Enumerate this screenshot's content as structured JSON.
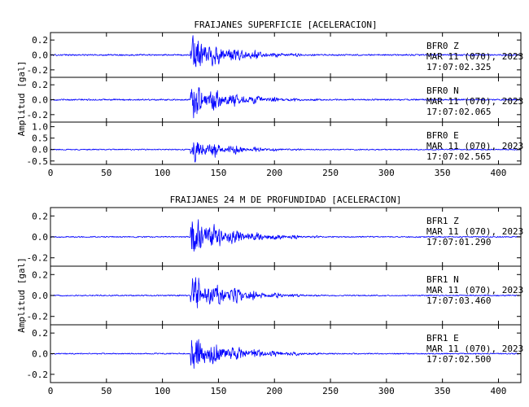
{
  "chart_data": [
    {
      "type": "line",
      "title": "FRAIJANES SUPERFICIE [ACELERACION]",
      "ylabel": "Amplitud [gal]",
      "xlim": [
        0,
        420
      ],
      "x_ticks": [
        "0",
        "50",
        "100",
        "150",
        "200",
        "250",
        "300",
        "350",
        "400"
      ],
      "series": [
        {
          "name": "BFR0 Z",
          "station": "BFR0",
          "component": "Z",
          "date": "MAR 11 (070), 2023",
          "time": "17:07:02.325",
          "ylim": [
            -0.3,
            0.3
          ],
          "y_ticks": [
            "0.2",
            "0.0",
            "-0.2"
          ],
          "onset_x": 125,
          "peak": 0.28,
          "noise": 0.01
        },
        {
          "name": "BFR0 N",
          "station": "BFR0",
          "component": "N",
          "date": "MAR 11 (070), 2023",
          "time": "17:07:02.065",
          "ylim": [
            -0.3,
            0.3
          ],
          "y_ticks": [
            "0.2",
            "0.0",
            "-0.2"
          ],
          "onset_x": 125,
          "peak": 0.25,
          "noise": 0.01
        },
        {
          "name": "BFR0 E",
          "station": "BFR0",
          "component": "E",
          "date": "MAR 11 (070), 2023",
          "time": "17:07:02.565",
          "ylim": [
            -0.65,
            1.2
          ],
          "y_ticks": [
            "1.0",
            "0.5",
            "0.0",
            "-0.5"
          ],
          "onset_x": 125,
          "peak": 0.55,
          "noise": 0.025
        }
      ]
    },
    {
      "type": "line",
      "title": "FRAIJANES 24 M DE PROFUNDIDAD [ACELERACION]",
      "ylabel": "Amplitud [gal]",
      "xlim": [
        0,
        420
      ],
      "x_ticks": [
        "0",
        "50",
        "100",
        "150",
        "200",
        "250",
        "300",
        "350",
        "400"
      ],
      "series": [
        {
          "name": "BFR1 Z",
          "station": "BFR1",
          "component": "Z",
          "date": "MAR 11 (070), 2023",
          "time": "17:07:01.290",
          "ylim": [
            -0.28,
            0.28
          ],
          "y_ticks": [
            "0.2",
            "0.0",
            "-0.2"
          ],
          "onset_x": 125,
          "peak": 0.22,
          "noise": 0.006
        },
        {
          "name": "BFR1 N",
          "station": "BFR1",
          "component": "N",
          "date": "MAR 11 (070), 2023",
          "time": "17:07:03.460",
          "ylim": [
            -0.28,
            0.28
          ],
          "y_ticks": [
            "0.2",
            "0.0",
            "-0.2"
          ],
          "onset_x": 125,
          "peak": 0.2,
          "noise": 0.006
        },
        {
          "name": "BFR1 E",
          "station": "BFR1",
          "component": "E",
          "date": "MAR 11 (070), 2023",
          "time": "17:07:02.500",
          "ylim": [
            -0.28,
            0.28
          ],
          "y_ticks": [
            "0.2",
            "0.0",
            "-0.2"
          ],
          "onset_x": 125,
          "peak": 0.22,
          "noise": 0.006
        }
      ]
    }
  ]
}
